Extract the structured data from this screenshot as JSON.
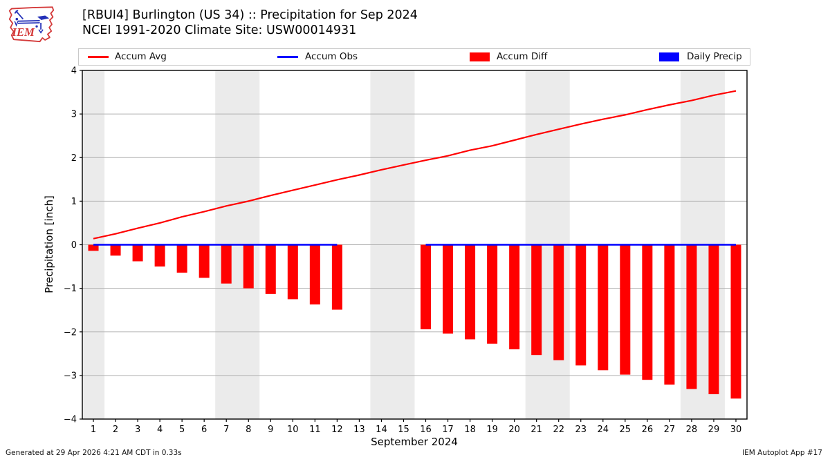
{
  "header": {
    "title_line1": "[RBUI4] Burlington (US 34) :: Precipitation for Sep 2024",
    "title_line2": "NCEI 1991-2020 Climate Site: USW00014931",
    "logo_text": "IEM"
  },
  "legend": {
    "items": [
      {
        "label": "Accum Avg",
        "swatch": "line",
        "color": "#ff0000"
      },
      {
        "label": "Accum Obs",
        "swatch": "line",
        "color": "#0000ff"
      },
      {
        "label": "Accum Diff",
        "swatch": "rect",
        "color": "#ff0000"
      },
      {
        "label": "Daily Precip",
        "swatch": "rect",
        "color": "#0000ff"
      }
    ]
  },
  "footer": {
    "generated": "Generated at 29 Apr 2026 4:21 AM CDT in 0.33s",
    "app": "IEM Autoplot App #17"
  },
  "chart_data": {
    "type": "line+bar",
    "xlabel": "September 2024",
    "ylabel": "Precipitation [inch]",
    "xlim": [
      0.5,
      30.5
    ],
    "ylim": [
      -4,
      4
    ],
    "yticks": [
      4,
      3,
      2,
      1,
      0,
      -1,
      -2,
      -3,
      -4
    ],
    "grid": true,
    "weekend_bands": [
      [
        0.5,
        1.5
      ],
      [
        6.5,
        8.5
      ],
      [
        13.5,
        15.5
      ],
      [
        20.5,
        22.5
      ],
      [
        27.5,
        29.5
      ]
    ],
    "band_color": "#ebebeb",
    "grid_color": "#b0b0b0",
    "days": [
      1,
      2,
      3,
      4,
      5,
      6,
      7,
      8,
      9,
      10,
      11,
      12,
      13,
      14,
      15,
      16,
      17,
      18,
      19,
      20,
      21,
      22,
      23,
      24,
      25,
      26,
      27,
      28,
      29,
      30
    ],
    "missing_days": [
      13,
      14,
      15
    ],
    "series": [
      {
        "name": "Accum Avg",
        "type": "line",
        "color": "#ff0000",
        "values": [
          0.14,
          0.25,
          0.38,
          0.5,
          0.64,
          0.76,
          0.89,
          1.0,
          1.13,
          1.25,
          1.37,
          1.49,
          1.6,
          1.72,
          1.83,
          1.94,
          2.04,
          2.17,
          2.27,
          2.4,
          2.53,
          2.65,
          2.77,
          2.88,
          2.98,
          3.1,
          3.21,
          3.31,
          3.43,
          3.53
        ]
      },
      {
        "name": "Accum Obs",
        "type": "line",
        "color": "#0000ff",
        "values": [
          0,
          0,
          0,
          0,
          0,
          0,
          0,
          0,
          0,
          0,
          0,
          0,
          null,
          null,
          null,
          0,
          0,
          0,
          0,
          0,
          0,
          0,
          0,
          0,
          0,
          0,
          0,
          0,
          0,
          0
        ]
      },
      {
        "name": "Accum Diff",
        "type": "bar",
        "color": "#ff0000",
        "values": [
          -0.14,
          -0.25,
          -0.38,
          -0.5,
          -0.64,
          -0.76,
          -0.89,
          -1.0,
          -1.13,
          -1.25,
          -1.37,
          -1.49,
          null,
          null,
          null,
          -1.94,
          -2.04,
          -2.17,
          -2.27,
          -2.4,
          -2.53,
          -2.65,
          -2.77,
          -2.88,
          -2.98,
          -3.1,
          -3.21,
          -3.31,
          -3.43,
          -3.53
        ]
      },
      {
        "name": "Daily Precip",
        "type": "bar",
        "color": "#0000ff",
        "values": [
          0,
          0,
          0,
          0,
          0,
          0,
          0,
          0,
          0,
          0,
          0,
          0,
          null,
          null,
          null,
          0,
          0,
          0,
          0,
          0,
          0,
          0,
          0,
          0,
          0,
          0,
          0,
          0,
          0,
          0
        ]
      }
    ]
  }
}
